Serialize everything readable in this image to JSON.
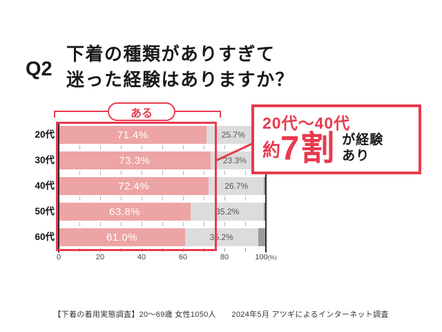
{
  "accent_red": "#e73a4e",
  "question": {
    "label": "Q2",
    "title_line1": "下着の種類がありすぎて",
    "title_line2": "迷った経験はありますか？"
  },
  "answer_tag": {
    "label": "ある"
  },
  "callout": {
    "line1": "20代〜40代",
    "approx": "約",
    "big": "7割",
    "suffix_line1": "が経験",
    "suffix_line2": "あり"
  },
  "chart_data": {
    "type": "bar",
    "orientation": "horizontal",
    "title": "",
    "categories": [
      "20代",
      "30代",
      "40代",
      "50代",
      "60代"
    ],
    "series": [
      {
        "name": "ある",
        "color": "#eda4a4",
        "values": [
          71.4,
          73.3,
          72.4,
          63.8,
          61.0
        ],
        "labels": [
          "71.4%",
          "73.3%",
          "72.4%",
          "63.8%",
          "61.0%"
        ]
      },
      {
        "name": "",
        "color": "#dcdcdc",
        "values": [
          25.7,
          23.3,
          26.7,
          35.2,
          35.2
        ],
        "labels": [
          "25.7%",
          "23.3%",
          "26.7%",
          "35.2%",
          "35.2%"
        ]
      },
      {
        "name": "",
        "color": "#9b9b9b",
        "values": [
          2.9,
          3.4,
          0.9,
          1.0,
          3.8
        ],
        "labels": [
          "",
          "",
          "",
          "",
          ""
        ]
      }
    ],
    "xlim": [
      0,
      100
    ],
    "tick_labels": [
      "0",
      "20",
      "40",
      "60",
      "80",
      "100"
    ],
    "unit": "(%)",
    "minor_tick_step": 10,
    "grid": true,
    "legend_position": "none"
  },
  "footer": "【下着の着用実態調査】20〜69歳 女性1050人　　2024年5月 アツギによるインターネット調査"
}
